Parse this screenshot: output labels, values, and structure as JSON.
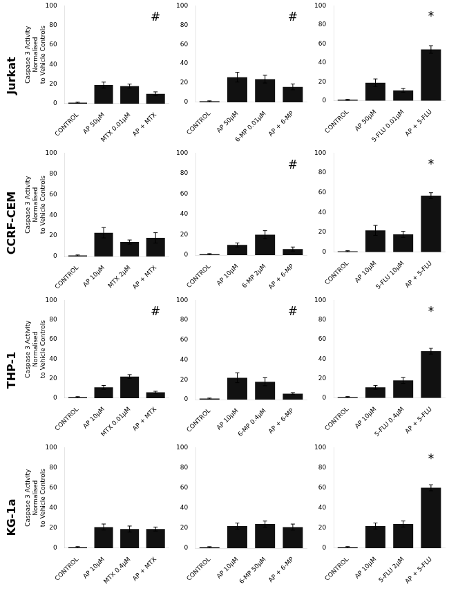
{
  "chart_data": [
    {
      "type": "bar",
      "title": "Jurkat",
      "ylabel": "Caspase 3 Activity\nNormalised\nto Vehicle Controls",
      "categories": [
        "CONTROL",
        "AP 50μM",
        "MTX 0.01μM",
        "AP + MTX"
      ],
      "values": [
        1,
        19,
        18,
        10
      ],
      "errors": [
        0.5,
        3,
        2,
        2
      ],
      "color": "#111111",
      "ylim": [
        0,
        100
      ],
      "yticks": [
        0,
        20,
        40,
        60,
        80,
        100
      ],
      "grid": false,
      "annotations": [
        {
          "text": "#",
          "x": "AP + MTX",
          "y": 88
        }
      ]
    },
    {
      "type": "bar",
      "categories": [
        "CONTROL",
        "AP 50μM",
        "6-MP 0.01μM",
        "AP + 6-MP"
      ],
      "values": [
        1,
        26,
        24,
        16
      ],
      "errors": [
        0.5,
        5,
        4,
        3
      ],
      "color": "#111111",
      "ylim": [
        0,
        100
      ],
      "yticks": [
        0,
        20,
        40,
        60,
        80,
        100
      ],
      "grid": false,
      "annotations": [
        {
          "text": "#",
          "x": "AP + 6-MP",
          "y": 88
        }
      ]
    },
    {
      "type": "bar",
      "categories": [
        "CONTROL",
        "AP 50μM",
        "5-FLU 0.01μM",
        "AP + 5-FLU"
      ],
      "values": [
        1,
        19,
        11,
        54
      ],
      "errors": [
        0.5,
        4,
        2,
        4
      ],
      "color": "#111111",
      "ylim": [
        0,
        100
      ],
      "yticks": [
        0,
        20,
        40,
        60,
        80,
        100
      ],
      "grid": false,
      "annotations": [
        {
          "text": "*",
          "x": "AP + 5-FLU",
          "y": 88
        }
      ]
    },
    {
      "type": "bar",
      "title": "CCRF-CEM",
      "ylabel": "Caspase 3 Activity\nNormalised\nto Vehicle Controls",
      "categories": [
        "CONTROL",
        "AP 10μM",
        "MTX 2μM",
        "AP + MTX"
      ],
      "values": [
        1,
        23,
        14,
        18
      ],
      "errors": [
        0.5,
        5,
        2,
        5
      ],
      "color": "#111111",
      "ylim": [
        0,
        100
      ],
      "yticks": [
        0,
        20,
        40,
        60,
        80,
        100
      ],
      "grid": false
    },
    {
      "type": "bar",
      "categories": [
        "CONTROL",
        "AP 10μM",
        "6-MP 2μM",
        "AP + 6-MP"
      ],
      "values": [
        1,
        10,
        20,
        6
      ],
      "errors": [
        0.5,
        2,
        4,
        2
      ],
      "color": "#111111",
      "ylim": [
        0,
        100
      ],
      "yticks": [
        0,
        20,
        40,
        60,
        80,
        100
      ],
      "grid": false,
      "annotations": [
        {
          "text": "#",
          "x": "AP + 6-MP",
          "y": 88
        }
      ]
    },
    {
      "type": "bar",
      "categories": [
        "CONTROL",
        "AP 10μM",
        "5-FLU 10μM",
        "AP + 5-FLU"
      ],
      "values": [
        1,
        22,
        18,
        57
      ],
      "errors": [
        0.5,
        5,
        3,
        3
      ],
      "color": "#111111",
      "ylim": [
        0,
        100
      ],
      "yticks": [
        0,
        20,
        40,
        60,
        80,
        100
      ],
      "grid": false,
      "annotations": [
        {
          "text": "*",
          "x": "AP + 5-FLU",
          "y": 88
        }
      ]
    },
    {
      "type": "bar",
      "title": "THP-1",
      "ylabel": "Caspase 3 Activity\nNormalised\nto Vehicle Controls",
      "categories": [
        "CONTROL",
        "AP 10μM",
        "MTX 0.01μM",
        "AP + MTX"
      ],
      "values": [
        1,
        11,
        22,
        6
      ],
      "errors": [
        0.5,
        2,
        2,
        1
      ],
      "color": "#111111",
      "ylim": [
        0,
        100
      ],
      "yticks": [
        0,
        20,
        40,
        60,
        80,
        100
      ],
      "grid": false,
      "annotations": [
        {
          "text": "#",
          "x": "AP + MTX",
          "y": 88
        }
      ]
    },
    {
      "type": "bar",
      "categories": [
        "CONTROL",
        "AP 10μM",
        "6-MP 0.4μM",
        "AP + 6-MP"
      ],
      "values": [
        1,
        22,
        18,
        6
      ],
      "errors": [
        0.5,
        5,
        4,
        1
      ],
      "color": "#111111",
      "ylim": [
        0,
        100
      ],
      "yticks": [
        0,
        20,
        40,
        60,
        80,
        100
      ],
      "grid": false,
      "annotations": [
        {
          "text": "#",
          "x": "AP + 6-MP",
          "y": 88
        }
      ]
    },
    {
      "type": "bar",
      "categories": [
        "CONTROL",
        "AP 10μM",
        "5-FLU 0.4μM",
        "AP + 5-FLU"
      ],
      "values": [
        1,
        11,
        18,
        48
      ],
      "errors": [
        0.5,
        2,
        3,
        3
      ],
      "color": "#111111",
      "ylim": [
        0,
        100
      ],
      "yticks": [
        0,
        20,
        40,
        60,
        80,
        100
      ],
      "grid": false,
      "annotations": [
        {
          "text": "*",
          "x": "AP + 5-FLU",
          "y": 88
        }
      ]
    },
    {
      "type": "bar",
      "title": "KG-1a",
      "ylabel": "Caspase 3 Activity\nNormalised\nto Vehicle Controls",
      "categories": [
        "CONTROL",
        "AP 10μM",
        "MTX 0.4μM",
        "AP + MTX"
      ],
      "values": [
        1,
        21,
        19,
        19
      ],
      "errors": [
        0.5,
        3,
        3,
        2
      ],
      "color": "#111111",
      "ylim": [
        0,
        100
      ],
      "yticks": [
        0,
        20,
        40,
        60,
        80,
        100
      ],
      "grid": false
    },
    {
      "type": "bar",
      "categories": [
        "CONTROL",
        "AP 10μM",
        "6-MP 50μM",
        "AP + 6-MP"
      ],
      "values": [
        1,
        22,
        24,
        21
      ],
      "errors": [
        0.5,
        3,
        3,
        3
      ],
      "color": "#111111",
      "ylim": [
        0,
        100
      ],
      "yticks": [
        0,
        20,
        40,
        60,
        80,
        100
      ],
      "grid": false
    },
    {
      "type": "bar",
      "categories": [
        "CONTROL",
        "AP 10μM",
        "5-FLU 2μM",
        "AP + 5-FLU"
      ],
      "values": [
        1,
        22,
        24,
        60
      ],
      "errors": [
        0.5,
        3,
        3,
        3
      ],
      "color": "#111111",
      "ylim": [
        0,
        100
      ],
      "yticks": [
        0,
        20,
        40,
        60,
        80,
        100
      ],
      "grid": false,
      "annotations": [
        {
          "text": "*",
          "x": "AP + 5-FLU",
          "y": 88
        }
      ]
    }
  ]
}
